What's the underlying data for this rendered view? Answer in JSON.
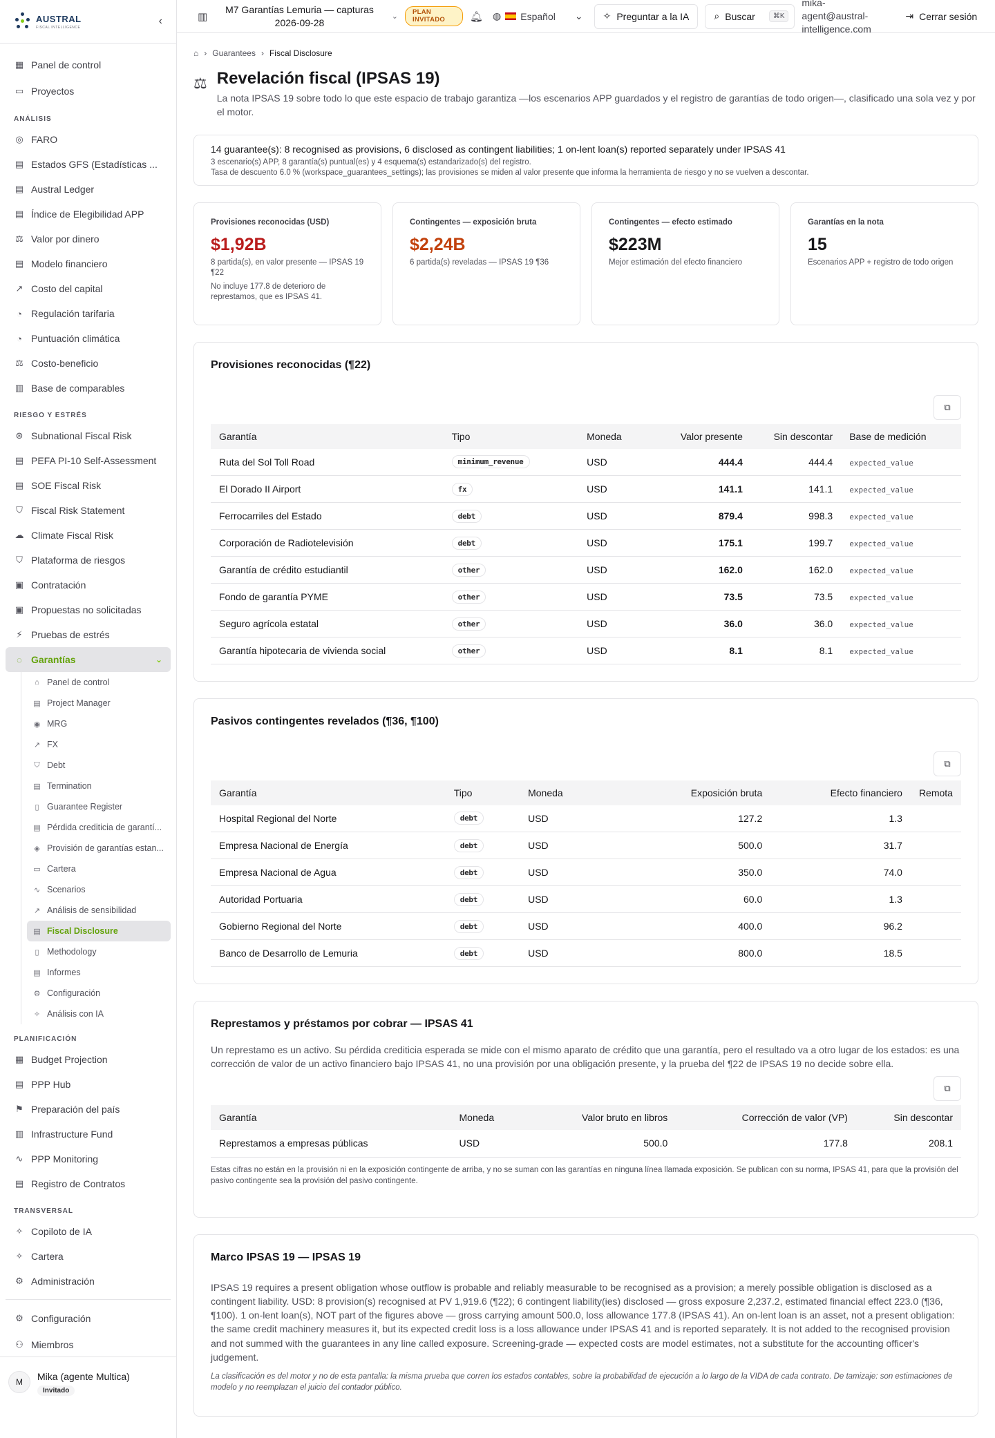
{
  "brand": {
    "name": "AUSTRAL",
    "tagline": "FISCAL INTELLIGENCE"
  },
  "sidebar": {
    "top": [
      {
        "label": "Panel de control",
        "icon": "dashboard-icon"
      },
      {
        "label": "Proyectos",
        "icon": "folder-icon"
      }
    ],
    "sections": [
      {
        "title": "ANÁLISIS",
        "items": [
          {
            "label": "FARO",
            "icon": "compass-icon"
          },
          {
            "label": "Estados GFS (Estadísticas ...",
            "icon": "document-icon"
          },
          {
            "label": "Austral Ledger",
            "icon": "document-icon"
          },
          {
            "label": "Índice de Elegibilidad APP",
            "icon": "document-icon"
          },
          {
            "label": "Valor por dinero",
            "icon": "scale-icon"
          },
          {
            "label": "Modelo financiero",
            "icon": "document-icon"
          },
          {
            "label": "Costo del capital",
            "icon": "trend-icon"
          },
          {
            "label": "Regulación tarifaria",
            "icon": "gauge-icon"
          },
          {
            "label": "Puntuación climática",
            "icon": "gauge-icon"
          },
          {
            "label": "Costo-beneficio",
            "icon": "scale-icon"
          },
          {
            "label": "Base de comparables",
            "icon": "chart-icon"
          }
        ]
      },
      {
        "title": "RIESGO Y ESTRÉS",
        "items": [
          {
            "label": "Subnational Fiscal Risk",
            "icon": "network-icon"
          },
          {
            "label": "PEFA PI-10 Self-Assessment",
            "icon": "document-icon"
          },
          {
            "label": "SOE Fiscal Risk",
            "icon": "document-icon"
          },
          {
            "label": "Fiscal Risk Statement",
            "icon": "shield-icon"
          },
          {
            "label": "Climate Fiscal Risk",
            "icon": "cloud-icon"
          },
          {
            "label": "Plataforma de riesgos",
            "icon": "shield-icon"
          },
          {
            "label": "Contratación",
            "icon": "clipboard-icon"
          },
          {
            "label": "Propuestas no solicitadas",
            "icon": "clipboard-icon"
          },
          {
            "label": "Pruebas de estrés",
            "icon": "bolt-icon"
          }
        ]
      }
    ],
    "active": {
      "label": "Garantías",
      "icon": "guarantee-icon"
    },
    "sub_items": [
      {
        "label": "Panel de control",
        "icon": "home-icon"
      },
      {
        "label": "Project Manager",
        "icon": "document-icon"
      },
      {
        "label": "MRG",
        "icon": "target-icon"
      },
      {
        "label": "FX",
        "icon": "trend-icon"
      },
      {
        "label": "Debt",
        "icon": "shield-icon"
      },
      {
        "label": "Termination",
        "icon": "document-icon"
      },
      {
        "label": "Guarantee Register",
        "icon": "book-icon"
      },
      {
        "label": "Pérdida crediticia de garantí...",
        "icon": "document-icon"
      },
      {
        "label": "Provisión de garantías estan...",
        "icon": "layers-icon"
      },
      {
        "label": "Cartera",
        "icon": "folder-icon"
      },
      {
        "label": "Scenarios",
        "icon": "pulse-icon"
      },
      {
        "label": "Análisis de sensibilidad",
        "icon": "trend-icon"
      },
      {
        "label": "Fiscal Disclosure",
        "icon": "document-icon"
      },
      {
        "label": "Methodology",
        "icon": "book-icon"
      },
      {
        "label": "Informes",
        "icon": "document-icon"
      },
      {
        "label": "Configuración",
        "icon": "gear-icon"
      },
      {
        "label": "Análisis con IA",
        "icon": "sparkle-icon"
      }
    ],
    "sections_after": [
      {
        "title": "PLANIFICACIÓN",
        "items": [
          {
            "label": "Budget Projection",
            "icon": "calculator-icon"
          },
          {
            "label": "PPP Hub",
            "icon": "document-icon"
          },
          {
            "label": "Preparación del país",
            "icon": "flag-icon"
          },
          {
            "label": "Infrastructure Fund",
            "icon": "building-icon"
          },
          {
            "label": "PPP Monitoring",
            "icon": "pulse-icon"
          },
          {
            "label": "Registro de Contratos",
            "icon": "document-icon"
          }
        ]
      },
      {
        "title": "TRANSVERSAL",
        "items": [
          {
            "label": "Copiloto de IA",
            "icon": "sparkle-icon"
          },
          {
            "label": "Cartera",
            "icon": "sparkle-icon"
          },
          {
            "label": "Administración",
            "icon": "gear-icon"
          }
        ]
      }
    ],
    "bottom": [
      {
        "label": "Configuración",
        "icon": "gear-icon"
      },
      {
        "label": "Miembros",
        "icon": "users-icon"
      }
    ],
    "user": {
      "initial": "M",
      "name": "Mika (agente Multica)",
      "badge": "Invitado"
    }
  },
  "topbar": {
    "workspace": "M7 Garantías Lemuria — capturas 2026-09-28",
    "plan": "PLAN INVITADO",
    "language": "Español",
    "ask_ai": "Preguntar a la IA",
    "search": "Buscar",
    "shortcut": "⌘K",
    "email": "mika-agent@austral-intelligence.com",
    "logout": "Cerrar sesión"
  },
  "breadcrumb": {
    "parent": "Guarantees",
    "current": "Fiscal Disclosure"
  },
  "page": {
    "title": "Revelación fiscal (IPSAS 19)",
    "subtitle": "La nota IPSAS 19 sobre todo lo que este espacio de trabajo garantiza —los escenarios APP guardados y el registro de garantías de todo origen—, clasificado una sola vez y por el motor."
  },
  "summary": {
    "line1": "14 guarantee(s): 8 recognised as provisions, 6 disclosed as contingent liabilities; 1 on-lent loan(s) reported separately under IPSAS 41",
    "line2": "3 escenario(s) APP, 8 garantía(s) puntual(es) y 4 esquema(s) estandarizado(s) del registro.",
    "line3": "Tasa de descuento 6.0 % (workspace_guarantees_settings); las provisiones se miden al valor presente que informa la herramienta de riesgo y no se vuelven a descontar."
  },
  "kpis": [
    {
      "label": "Provisiones reconocidas (USD)",
      "value": "$1,92B",
      "color": "#b91c1c",
      "note": "8 partida(s), en valor presente — IPSAS 19 ¶22",
      "note2": "No incluye 177.8 de deterioro de represtamos, que es IPSAS 41."
    },
    {
      "label": "Contingentes — exposición bruta",
      "value": "$2,24B",
      "color": "#c2410c",
      "note": "6 partida(s) reveladas — IPSAS 19 ¶36",
      "note2": ""
    },
    {
      "label": "Contingentes — efecto estimado",
      "value": "$223M",
      "color": "#18181b",
      "note": "Mejor estimación del efecto financiero",
      "note2": ""
    },
    {
      "label": "Garantías en la nota",
      "value": "15",
      "color": "#18181b",
      "note": "Escenarios APP + registro de todo origen",
      "note2": ""
    }
  ],
  "provisions": {
    "title": "Provisiones reconocidas (¶22)",
    "headers": [
      "Garantía",
      "Tipo",
      "Moneda",
      "Valor presente",
      "Sin descontar",
      "Base de medición"
    ],
    "rows": [
      [
        "Ruta del Sol Toll Road",
        "minimum_revenue",
        "USD",
        "444.4",
        "444.4",
        "expected_value"
      ],
      [
        "El Dorado II Airport",
        "fx",
        "USD",
        "141.1",
        "141.1",
        "expected_value"
      ],
      [
        "Ferrocarriles del Estado",
        "debt",
        "USD",
        "879.4",
        "998.3",
        "expected_value"
      ],
      [
        "Corporación de Radiotelevisión",
        "debt",
        "USD",
        "175.1",
        "199.7",
        "expected_value"
      ],
      [
        "Garantía de crédito estudiantil",
        "other",
        "USD",
        "162.0",
        "162.0",
        "expected_value"
      ],
      [
        "Fondo de garantía PYME",
        "other",
        "USD",
        "73.5",
        "73.5",
        "expected_value"
      ],
      [
        "Seguro agrícola estatal",
        "other",
        "USD",
        "36.0",
        "36.0",
        "expected_value"
      ],
      [
        "Garantía hipotecaria de vivienda social",
        "other",
        "USD",
        "8.1",
        "8.1",
        "expected_value"
      ]
    ]
  },
  "contingents": {
    "title": "Pasivos contingentes revelados (¶36, ¶100)",
    "headers": [
      "Garantía",
      "Tipo",
      "Moneda",
      "Exposición bruta",
      "Efecto financiero",
      "Remota"
    ],
    "rows": [
      [
        "Hospital Regional del Norte",
        "debt",
        "USD",
        "127.2",
        "1.3",
        ""
      ],
      [
        "Empresa Nacional de Energía",
        "debt",
        "USD",
        "500.0",
        "31.7",
        ""
      ],
      [
        "Empresa Nacional de Agua",
        "debt",
        "USD",
        "350.0",
        "74.0",
        ""
      ],
      [
        "Autoridad Portuaria",
        "debt",
        "USD",
        "60.0",
        "1.3",
        ""
      ],
      [
        "Gobierno Regional del Norte",
        "debt",
        "USD",
        "400.0",
        "96.2",
        ""
      ],
      [
        "Banco de Desarrollo de Lemuria",
        "debt",
        "USD",
        "800.0",
        "18.5",
        ""
      ]
    ]
  },
  "loans": {
    "title": "Represtamos y préstamos por cobrar — IPSAS 41",
    "intro": "Un represtamo es un activo. Su pérdida crediticia esperada se mide con el mismo aparato de crédito que una garantía, pero el resultado va a otro lugar de los estados: es una corrección de valor de un activo financiero bajo IPSAS 41, no una provisión por una obligación presente, y la prueba del ¶22 de IPSAS 19 no decide sobre ella.",
    "headers": [
      "Garantía",
      "Moneda",
      "Valor bruto en libros",
      "Corrección de valor (VP)",
      "Sin descontar"
    ],
    "rows": [
      [
        "Represtamos a empresas públicas",
        "USD",
        "500.0",
        "177.8",
        "208.1"
      ]
    ],
    "note": "Estas cifras no están en la provisión ni en la exposición contingente de arriba, y no se suman con las garantías en ninguna línea llamada exposición. Se publican con su norma, IPSAS 41, para que la provisión del pasivo contingente sea la provisión del pasivo contingente."
  },
  "framework": {
    "title": "Marco IPSAS 19 — IPSAS 19",
    "body": "IPSAS 19 requires a present obligation whose outflow is probable and reliably measurable to be recognised as a provision; a merely possible obligation is disclosed as a contingent liability. USD: 8 provision(s) recognised at PV 1,919.6 (¶22); 6 contingent liability(ies) disclosed — gross exposure 2,237.2, estimated financial effect 223.0 (¶36, ¶100). 1 on-lent loan(s), NOT part of the figures above — gross carrying amount 500.0, loss allowance 177.8 (IPSAS 41). An on-lent loan is an asset, not a present obligation: the same credit machinery measures it, but its expected credit loss is a loss allowance under IPSAS 41 and is reported separately. It is not added to the recognised provision and not summed with the guarantees in any line called exposure. Screening-grade — expected costs are model estimates, not a substitute for the accounting officer's judgement.",
    "note": "La clasificación es del motor y no de esta pantalla: la misma prueba que corren los estados contables, sobre la probabilidad de ejecución a lo largo de la VIDA de cada contrato. De tamizaje: son estimaciones de modelo y no reemplazan el juicio del contador público."
  },
  "icons_map": {
    "dashboard-icon": "▦",
    "folder-icon": "▭",
    "compass-icon": "◎",
    "document-icon": "▤",
    "scale-icon": "⚖",
    "trend-icon": "↗",
    "gauge-icon": "◔",
    "chart-icon": "▥",
    "network-icon": "⊛",
    "shield-icon": "⛉",
    "cloud-icon": "☁",
    "clipboard-icon": "▣",
    "bolt-icon": "⚡",
    "guarantee-icon": "◌",
    "home-icon": "⌂",
    "target-icon": "◉",
    "book-icon": "▯",
    "layers-icon": "◈",
    "pulse-icon": "∿",
    "gear-icon": "⚙",
    "sparkle-icon": "✧",
    "calculator-icon": "▦",
    "flag-icon": "⚑",
    "building-icon": "▥",
    "users-icon": "⚇"
  }
}
